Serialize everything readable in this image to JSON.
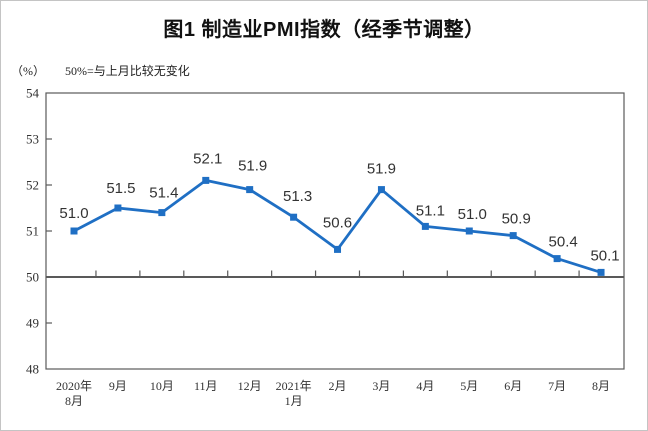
{
  "page": {
    "title": "图1 制造业PMI指数（经季节调整）",
    "axis_unit_label": "（%）",
    "note": "50%=与上月比较无变化"
  },
  "chart_data": {
    "type": "line",
    "title": "图1 制造业PMI指数（经季节调整）",
    "annotation": "50%=与上月比较无变化",
    "ylabel": "（%）",
    "categories": [
      "2020年\n8月",
      "9月",
      "10月",
      "11月",
      "12月",
      "2021年\n1月",
      "2月",
      "3月",
      "4月",
      "5月",
      "6月",
      "7月",
      "8月"
    ],
    "values": [
      51.0,
      51.5,
      51.4,
      52.1,
      51.9,
      51.3,
      50.6,
      51.9,
      51.1,
      51.0,
      50.9,
      50.4,
      50.1
    ],
    "value_labels": [
      "51.0",
      "51.5",
      "51.4",
      "52.1",
      "51.9",
      "51.3",
      "50.6",
      "51.9",
      "51.1",
      "51.0",
      "50.9",
      "50.4",
      "50.1"
    ],
    "ylim": [
      48,
      54
    ],
    "yticks": [
      48,
      49,
      50,
      51,
      52,
      53,
      54
    ],
    "baseline": 50,
    "grid": false,
    "legend": "none",
    "colors": {
      "line": "#1f6fc4",
      "marker": "#1f6fc4",
      "data_label": "#333333",
      "axis": "#595959",
      "tick_label": "#333333",
      "background": "#ffffff"
    }
  }
}
